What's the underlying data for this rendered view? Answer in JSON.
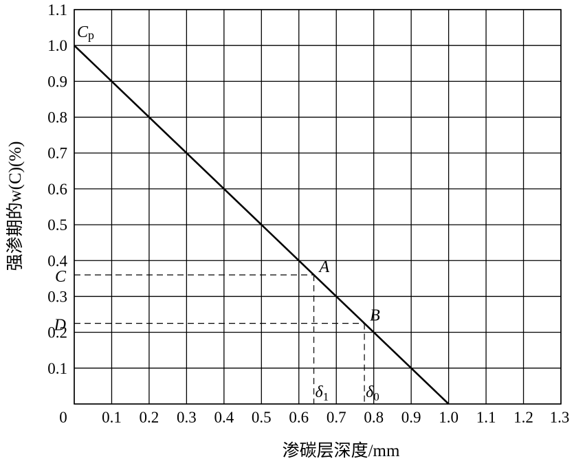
{
  "chart_data": {
    "type": "line",
    "xlabel": "渗碳层深度/mm",
    "ylabel": "强渗期的w(C)(%)",
    "xlim": [
      0,
      1.3
    ],
    "ylim": [
      0,
      1.1
    ],
    "x_ticks": [
      "0",
      "0.1",
      "0.2",
      "0.3",
      "0.4",
      "0.5",
      "0.6",
      "0.7",
      "0.8",
      "0.9",
      "1.0",
      "1.1",
      "1.2",
      "1.3"
    ],
    "y_ticks": [
      "0.1",
      "0.2",
      "0.3",
      "0.4",
      "0.5",
      "0.6",
      "0.7",
      "0.8",
      "0.9",
      "1.0",
      "1.1"
    ],
    "grid": true,
    "series": [
      {
        "x": [
          0,
          1.0
        ],
        "y": [
          1.0,
          0
        ]
      }
    ],
    "line_label": {
      "main": "C",
      "sub": "p",
      "x": 0,
      "y": 1.0
    },
    "points": [
      {
        "label": "A",
        "x": 0.64,
        "y": 0.36
      },
      {
        "label": "B",
        "x": 0.775,
        "y": 0.225
      }
    ],
    "y_markers": [
      {
        "label": "C",
        "y": 0.36
      },
      {
        "label": "D",
        "y": 0.225
      }
    ],
    "x_markers": [
      {
        "label": "δ",
        "sub": "1",
        "x": 0.64
      },
      {
        "label": "δ",
        "sub": "0",
        "x": 0.775
      }
    ]
  }
}
